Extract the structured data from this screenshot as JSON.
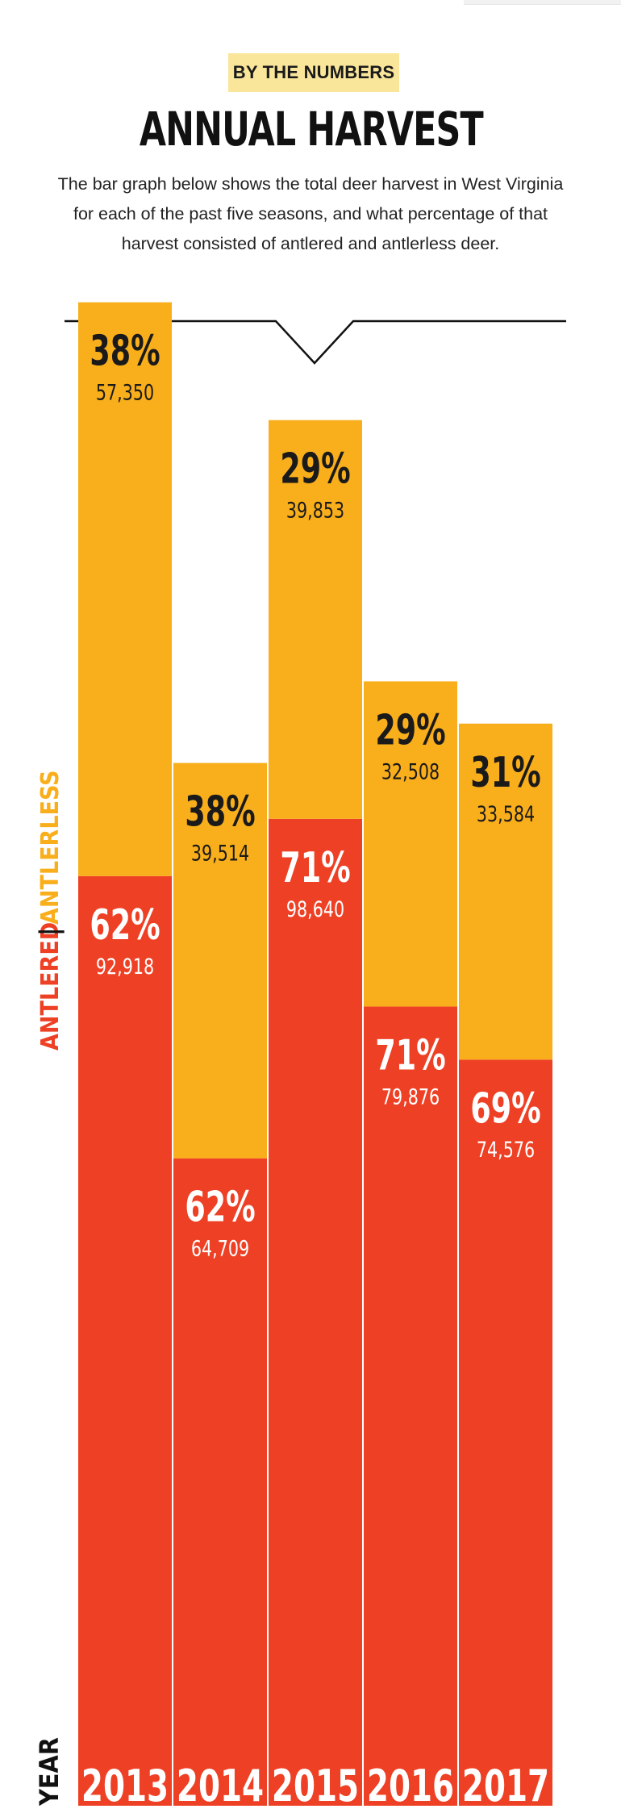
{
  "header": {
    "kicker": "BY THE NUMBERS",
    "title": "ANNUAL HARVEST",
    "intro": "The bar graph below shows the total deer harvest in West Virginia for each of the past five seasons, and what percentage of that harvest consisted of antlered and antlerless deer."
  },
  "colors": {
    "antlered": "#ee4024",
    "antlerless": "#f9ae1b",
    "kicker_bg": "#fae69a",
    "text_dark": "#1a1a1a",
    "text_light": "#ffffff"
  },
  "chart_data": {
    "type": "bar",
    "stacked": true,
    "categories": [
      "2013",
      "2014",
      "2015",
      "2016",
      "2017"
    ],
    "series": [
      {
        "name": "ANTLERED",
        "values": [
          92918,
          64709,
          98640,
          79876,
          74576
        ],
        "percent_labels": [
          "62%",
          "62%",
          "71%",
          "71%",
          "69%"
        ],
        "value_labels": [
          "92,918",
          "64,709",
          "98,640",
          "79,876",
          "74,576"
        ]
      },
      {
        "name": "ANTLERLESS",
        "values": [
          57350,
          39514,
          39853,
          32508,
          33584
        ],
        "percent_labels": [
          "38%",
          "38%",
          "29%",
          "29%",
          "31%"
        ],
        "value_labels": [
          "57,350",
          "39,514",
          "39,853",
          "32,508",
          "33,584"
        ]
      }
    ],
    "xlabel": "YEAR",
    "legend_divider": "|",
    "legend_placement": "left-vertical",
    "grid": false
  }
}
